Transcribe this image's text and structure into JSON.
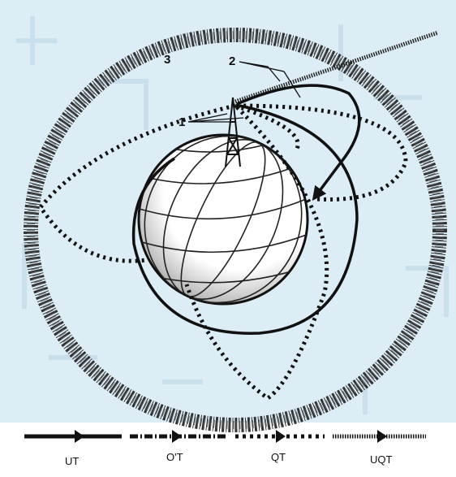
{
  "labels": {
    "ring": "3",
    "paths": "2",
    "antenna": "1"
  },
  "legend": [
    "UT",
    "O'T",
    "QT",
    "UQT"
  ]
}
